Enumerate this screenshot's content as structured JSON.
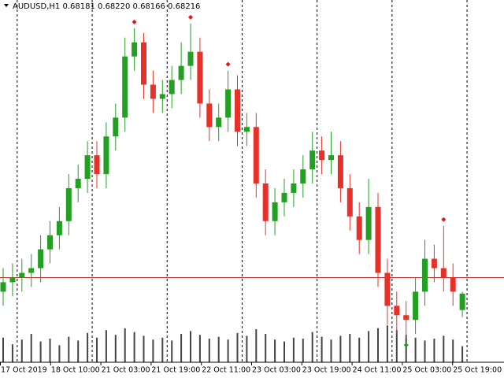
{
  "chart_data": {
    "type": "candlestick",
    "title": "AUDUSD,H1  0.68181 0.68220 0.68166 0.68216",
    "categories": [
      "17 Oct 2019",
      "18 Oct 10:00",
      "21 Oct 03:00",
      "21 Oct 19:00",
      "22 Oct 11:00",
      "23 Oct 03:00",
      "23 Oct 19:00",
      "24 Oct 11:00",
      "25 Oct 03:00",
      "25 Oct 19:00"
    ],
    "open": [
      0.6822,
      0.6824,
      0.6825,
      0.6826,
      0.6827,
      0.6831,
      0.6834,
      0.6837,
      0.6844,
      0.6846,
      0.6851,
      0.6847,
      0.6855,
      0.6859,
      0.6872,
      0.6875,
      0.6866,
      0.6863,
      0.6864,
      0.6867,
      0.687,
      0.6873,
      0.6862,
      0.6857,
      0.6859,
      0.6865,
      0.6856,
      0.6857,
      0.6845,
      0.6837,
      0.6841,
      0.6843,
      0.6845,
      0.6848,
      0.6852,
      0.685,
      0.6851,
      0.6844,
      0.6838,
      0.6833,
      0.684,
      0.6826,
      0.6819,
      0.6817,
      0.6816,
      0.6822,
      0.6829,
      0.6827,
      0.6825,
      0.68181
    ],
    "high": [
      0.6827,
      0.6828,
      0.6829,
      0.683,
      0.6834,
      0.6837,
      0.684,
      0.6847,
      0.6849,
      0.6854,
      0.6854,
      0.6858,
      0.6862,
      0.6876,
      0.6878,
      0.6877,
      0.6869,
      0.6867,
      0.687,
      0.6875,
      0.6879,
      0.6876,
      0.6865,
      0.6862,
      0.6869,
      0.6868,
      0.686,
      0.686,
      0.6848,
      0.6844,
      0.6846,
      0.6848,
      0.6851,
      0.6856,
      0.6855,
      0.6856,
      0.6854,
      0.6847,
      0.6841,
      0.6846,
      0.6843,
      0.6829,
      0.6822,
      0.682,
      0.6825,
      0.6833,
      0.6832,
      0.6836,
      0.6828,
      0.6822
    ],
    "low": [
      0.6819,
      0.6821,
      0.6822,
      0.6823,
      0.6824,
      0.6828,
      0.6831,
      0.6834,
      0.6841,
      0.6843,
      0.6844,
      0.6844,
      0.6852,
      0.6856,
      0.6869,
      0.6863,
      0.686,
      0.686,
      0.6861,
      0.6864,
      0.6867,
      0.6859,
      0.6854,
      0.6854,
      0.6856,
      0.6853,
      0.6853,
      0.6842,
      0.6834,
      0.6834,
      0.6838,
      0.684,
      0.6842,
      0.6845,
      0.6847,
      0.6847,
      0.6841,
      0.6835,
      0.683,
      0.683,
      0.6823,
      0.6815,
      0.6813,
      0.6812,
      0.6813,
      0.6819,
      0.6824,
      0.6822,
      0.6819,
      0.68166
    ],
    "close": [
      0.6824,
      0.6825,
      0.6826,
      0.6827,
      0.6831,
      0.6834,
      0.6837,
      0.6844,
      0.6846,
      0.6851,
      0.6847,
      0.6855,
      0.6859,
      0.6872,
      0.6875,
      0.6866,
      0.6863,
      0.6864,
      0.6867,
      0.687,
      0.6873,
      0.6862,
      0.6857,
      0.6859,
      0.6865,
      0.6856,
      0.6857,
      0.6845,
      0.6837,
      0.6841,
      0.6843,
      0.6845,
      0.6848,
      0.6852,
      0.685,
      0.6851,
      0.6844,
      0.6838,
      0.6833,
      0.684,
      0.6826,
      0.6819,
      0.6817,
      0.6816,
      0.6822,
      0.6829,
      0.6827,
      0.6825,
      0.6822,
      0.68216
    ],
    "volume": [
      2600,
      1900,
      2400,
      3000,
      2200,
      2500,
      1800,
      2700,
      2300,
      3100,
      2600,
      3400,
      2900,
      3600,
      3200,
      2800,
      2400,
      2600,
      2300,
      3000,
      3300,
      2900,
      2500,
      2700,
      2400,
      3100,
      2800,
      3500,
      3000,
      2400,
      2200,
      2600,
      2500,
      3200,
      2700,
      2400,
      2800,
      3000,
      2600,
      3300,
      3600,
      3900,
      3400,
      2900,
      2600,
      2300,
      2500,
      2800,
      2400,
      1700
    ],
    "ylim": [
      0.6807,
      0.6884
    ],
    "volume_lim": [
      0,
      5000
    ],
    "hline": 0.6825,
    "up_color": "#22a022",
    "down_color": "#e8302a",
    "hline_color": "#c03030",
    "volume_color": "#444444"
  }
}
